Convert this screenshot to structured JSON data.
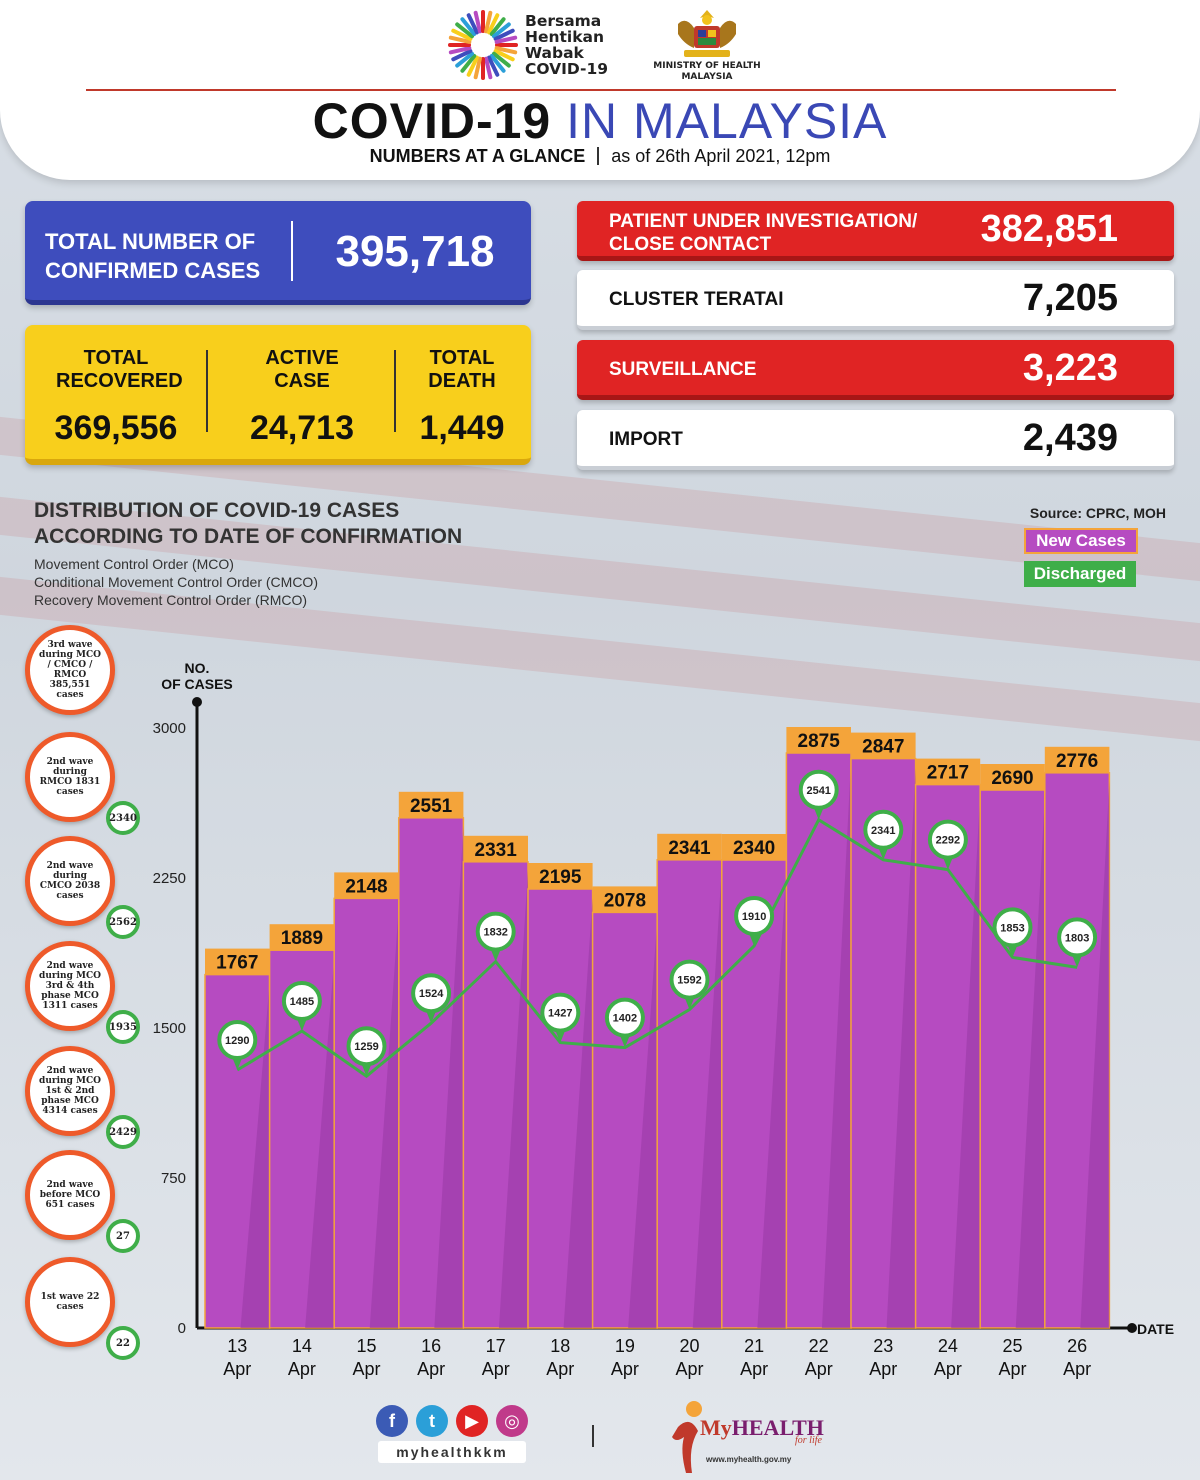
{
  "header": {
    "logo_text": [
      "Bersama",
      "Hentikan",
      "Wabak",
      "COVID-19"
    ],
    "ministry": "MINISTRY OF HEALTH MALAYSIA",
    "title_part1": "COVID-19",
    "title_part2": "IN MALAYSIA",
    "subtitle_left": "NUMBERS AT A GLANCE",
    "subtitle_right": "as of 26th April 2021, 12pm"
  },
  "stats": {
    "confirmed_label": "TOTAL NUMBER OF CONFIRMED CASES",
    "confirmed_value": "395,718",
    "recovered_label": "TOTAL RECOVERED",
    "recovered_value": "369,556",
    "active_label": "ACTIVE CASE",
    "active_value": "24,713",
    "death_label": "TOTAL DEATH",
    "death_value": "1,449",
    "pui_label": "PATIENT UNDER INVESTIGATION/ CLOSE CONTACT",
    "pui_value": "382,851",
    "cluster_label": "CLUSTER TERATAI",
    "cluster_value": "7,205",
    "surveillance_label": "SURVEILLANCE",
    "surveillance_value": "3,223",
    "import_label": "IMPORT",
    "import_value": "2,439"
  },
  "distribution": {
    "title": "DISTRIBUTION OF COVID-19 CASES ACCORDING TO DATE OF CONFIRMATION",
    "notes": [
      "Movement Control Order (MCO)",
      "Conditional Movement Control Order (CMCO)",
      "Recovery Movement Control Order (RMCO)"
    ],
    "source": "Source: CPRC, MOH",
    "legend_new": "New Cases",
    "legend_discharged": "Discharged"
  },
  "waves": [
    {
      "text": "3rd wave during MCO / CMCO / RMCO 385,551 cases",
      "badge": ""
    },
    {
      "text": "2nd wave during RMCO 1831 cases",
      "badge": "2340"
    },
    {
      "text": "2nd wave during CMCO 2038 cases",
      "badge": "2562"
    },
    {
      "text": "2nd wave during MCO 3rd & 4th phase MCO 1311 cases",
      "badge": "1935"
    },
    {
      "text": "2nd wave during MCO 1st & 2nd phase MCO 4314 cases",
      "badge": "2429"
    },
    {
      "text": "2nd wave before MCO 651 cases",
      "badge": "27"
    },
    {
      "text": "1st wave 22 cases",
      "badge": "22"
    }
  ],
  "chart_data": {
    "type": "bar",
    "ylabel": "NO. OF CASES",
    "xlabel": "DATE",
    "ylim": [
      0,
      3000
    ],
    "yticks": [
      0,
      750,
      1500,
      2250,
      3000
    ],
    "categories": [
      "13 Apr",
      "14 Apr",
      "15 Apr",
      "16 Apr",
      "17 Apr",
      "18 Apr",
      "19 Apr",
      "20 Apr",
      "21 Apr",
      "22 Apr",
      "23 Apr",
      "24 Apr",
      "25 Apr",
      "26 Apr"
    ],
    "series": [
      {
        "name": "New Cases",
        "type": "bar",
        "values": [
          1767,
          1889,
          2148,
          2551,
          2331,
          2195,
          2078,
          2341,
          2340,
          2875,
          2847,
          2717,
          2690,
          2776
        ]
      },
      {
        "name": "Discharged",
        "type": "line",
        "values": [
          1290,
          1485,
          1259,
          1524,
          1832,
          1427,
          1402,
          1592,
          1910,
          2541,
          2341,
          2292,
          1853,
          1803
        ]
      }
    ],
    "colors": {
      "bar": "#b64bc1",
      "bar_dark": "#9a3aa6",
      "label_bg": "#f4a43a",
      "line": "#3fae49"
    }
  },
  "footer": {
    "handle": "myhealthkkm",
    "brand_my": "My",
    "brand_health": "HEALTH",
    "brand_tag": "for life",
    "url": "www.myhealth.gov.my",
    "social_icons": [
      "facebook-icon",
      "twitter-icon",
      "youtube-icon",
      "instagram-icon"
    ]
  }
}
